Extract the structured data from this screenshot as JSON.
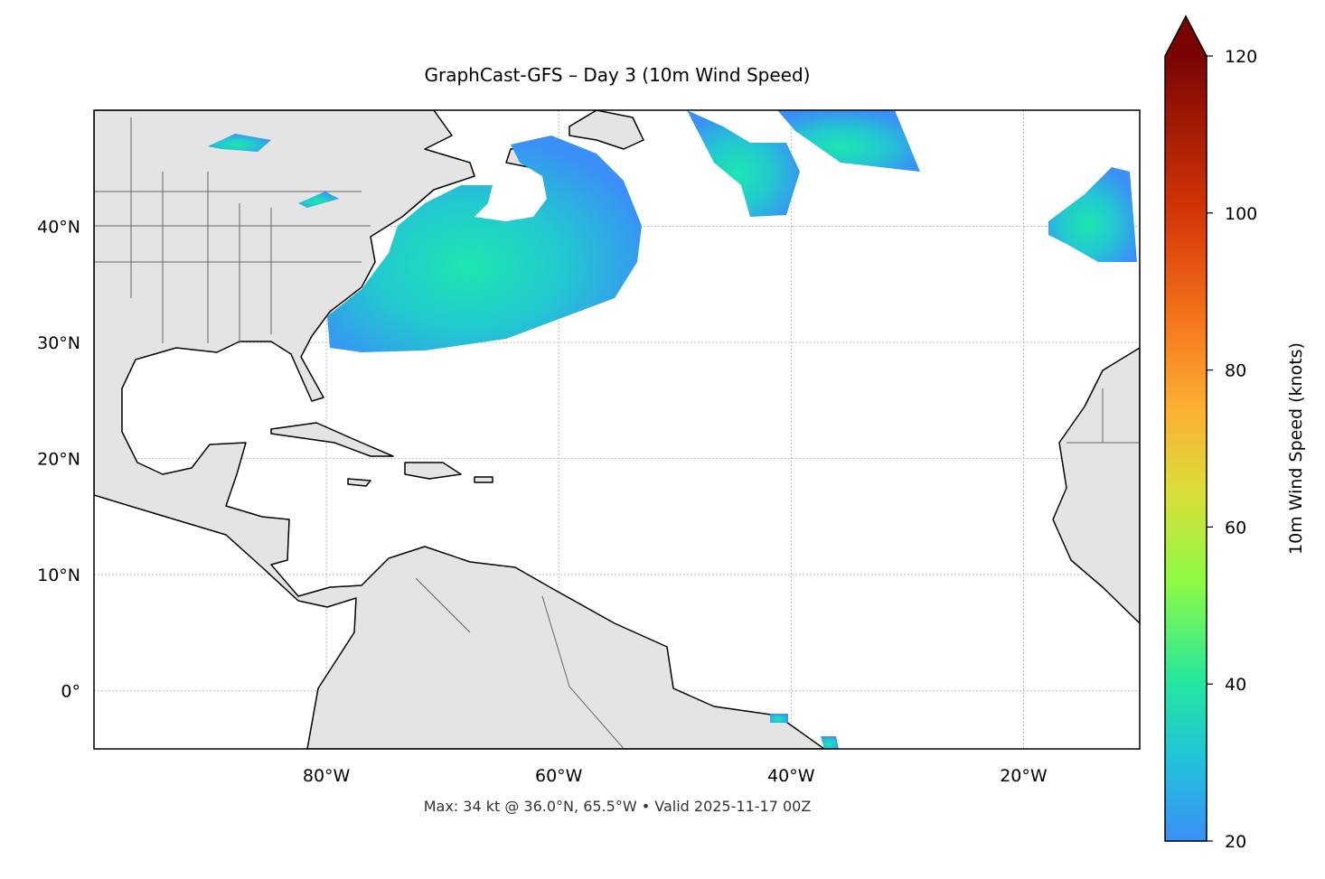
{
  "map": {
    "title": "GraphCast-GFS – Day 3 (10m Wind Speed)",
    "footnote": "Max: 34 kt @ 36.0°N, 65.5°W • Valid 2025-11-17 00Z",
    "xlim": [
      -100,
      -10
    ],
    "ylim": [
      -5,
      50
    ],
    "xticks": [
      {
        "value": -80,
        "label": "80°W"
      },
      {
        "value": -60,
        "label": "60°W"
      },
      {
        "value": -40,
        "label": "40°W"
      },
      {
        "value": -20,
        "label": "20°W"
      }
    ],
    "yticks": [
      {
        "value": 0,
        "label": "0°"
      },
      {
        "value": 10,
        "label": "10°N"
      },
      {
        "value": 20,
        "label": "20°N"
      },
      {
        "value": 30,
        "label": "30°N"
      },
      {
        "value": 40,
        "label": "40°N"
      }
    ],
    "grid": true
  },
  "colorbar": {
    "label": "10m Wind Speed (knots)",
    "lim": [
      20,
      120
    ],
    "ticks": [
      20,
      40,
      60,
      80,
      100,
      120
    ],
    "extend": "max"
  }
}
